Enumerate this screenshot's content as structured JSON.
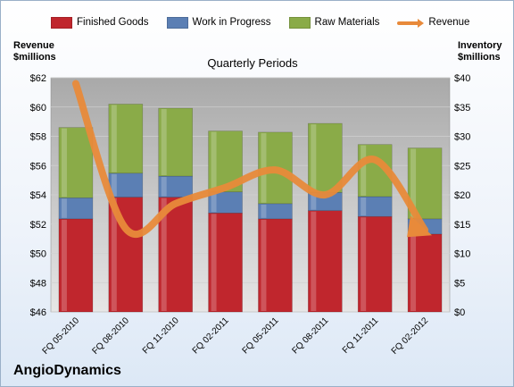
{
  "company": "AngioDynamics",
  "chart_data": {
    "type": "bar",
    "stacked": true,
    "title": "Quarterly Periods",
    "ylabel_left": "Revenue $millions",
    "ylabel_left_lines": [
      "Revenue",
      "$millions"
    ],
    "ylabel_right": "Inventory $millions",
    "ylabel_right_lines": [
      "Inventory",
      "$millions"
    ],
    "y_left_lim": [
      46,
      62
    ],
    "y_left_ticks": [
      "$46",
      "$48",
      "$50",
      "$52",
      "$54",
      "$56",
      "$58",
      "$60",
      "$62"
    ],
    "y_right_lim": [
      0,
      40
    ],
    "y_right_ticks": [
      "$0",
      "$5",
      "$10",
      "$15",
      "$20",
      "$25",
      "$30",
      "$35",
      "$40"
    ],
    "categories": [
      "FQ 05-2010",
      "FQ 08-2010",
      "FQ 11-2010",
      "FQ 02-2011",
      "FQ 05-2011",
      "FQ 08-2011",
      "FQ 11-2011",
      "FQ 02-2012"
    ],
    "series": [
      {
        "name": "Finished Goods",
        "axis": "right",
        "color": "#c0262d",
        "values": [
          15.9,
          19.6,
          19.6,
          16.9,
          15.9,
          17.3,
          16.3,
          13.3
        ]
      },
      {
        "name": "Work in Progress",
        "axis": "right",
        "color": "#5b7fb4",
        "values": [
          3.6,
          4.1,
          3.6,
          3.6,
          2.6,
          3.1,
          3.4,
          2.6
        ]
      },
      {
        "name": "Raw Materials",
        "axis": "right",
        "color": "#8aab48",
        "values": [
          12.0,
          11.8,
          11.6,
          10.4,
          12.2,
          11.8,
          8.9,
          12.1
        ]
      }
    ],
    "line_series": {
      "name": "Revenue",
      "axis": "left",
      "color": "#e88a3a",
      "values": [
        61.6,
        51.7,
        53.4,
        54.5,
        55.7,
        54.0,
        56.4,
        51.6
      ]
    },
    "grid": true,
    "legend_position": "top"
  }
}
